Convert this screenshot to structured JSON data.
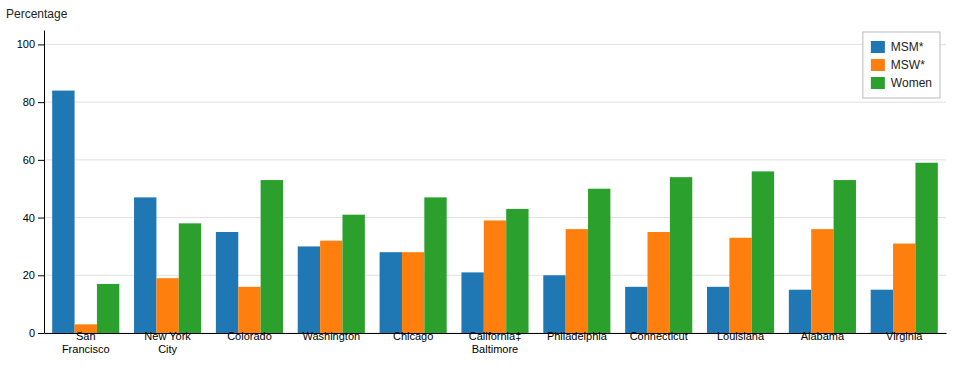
{
  "chart_data": {
    "type": "bar",
    "ylabel": "Percentage",
    "categories": [
      "San\nFrancisco",
      "New York\nCity",
      "Colorado",
      "Washington",
      "Chicago",
      "California‡\nBaltimore",
      "Philadelphia",
      "Connecticut",
      "Louisiana",
      "Alabama",
      "Virginia"
    ],
    "series": [
      {
        "name": "MSM*",
        "values": [
          84,
          47,
          35,
          30,
          28,
          21,
          20,
          16,
          16,
          15,
          15
        ]
      },
      {
        "name": "MSW*",
        "values": [
          3,
          19,
          16,
          32,
          28,
          39,
          36,
          35,
          33,
          36,
          31
        ]
      },
      {
        "name": "Women",
        "values": [
          17,
          38,
          53,
          41,
          47,
          43,
          50,
          54,
          56,
          53,
          59
        ]
      }
    ],
    "ylim": [
      0,
      105
    ],
    "yticks": [
      0,
      20,
      40,
      60,
      80,
      100
    ],
    "grid": true,
    "legend": "upper right"
  }
}
